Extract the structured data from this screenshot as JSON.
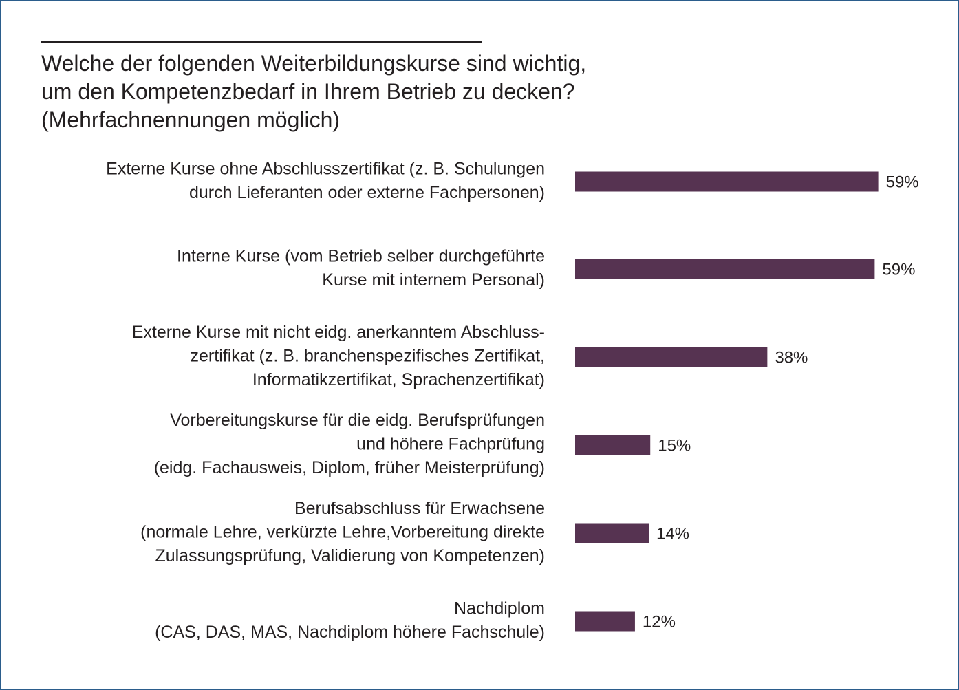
{
  "header": {
    "title_lines": [
      "Welche der folgenden Weiterbildungskurse sind wichtig,",
      "um den Kompetenzbedarf in Ihrem Betrieb zu decken?",
      "(Mehrfachnennungen möglich)"
    ]
  },
  "chart_data": {
    "type": "bar",
    "orientation": "horizontal",
    "title": "Welche der folgenden Weiterbildungskurse sind wichtig, um den Kompetenzbedarf in Ihrem Betrieb zu decken? (Mehrfachnennungen möglich)",
    "categories": [
      [
        "Externe Kurse ohne Abschlusszertifikat (z. B. Schulungen",
        "durch Lieferanten oder externe Fachpersonen)"
      ],
      [
        "Interne Kurse (vom Betrieb selber durchgeführte",
        "Kurse mit internem Personal)"
      ],
      [
        "Externe Kurse mit nicht eidg. anerkanntem Abschluss-",
        "zertifikat (z. B. branchenspezifisches Zertifikat,",
        "Informatikzertifikat, Sprachenzertifikat)"
      ],
      [
        "Vorbereitungskurse für die eidg. Berufsprüfungen",
        "und höhere Fachprüfung",
        "(eidg. Fachausweis, Diplom, früher Meisterprüfung)"
      ],
      [
        "Berufsabschluss für Erwachsene",
        "(normale Lehre, verkürzte Lehre,Vorbereitung direkte",
        "Zulassungsprüfung, Validierung von Kompetenzen)"
      ],
      [
        "Nachdiplom",
        "(CAS, DAS, MAS, Nachdiplom höhere Fachschule)"
      ]
    ],
    "values": [
      59.3,
      58.6,
      37.6,
      14.7,
      14.4,
      11.7
    ],
    "value_labels": [
      "59%",
      "59%",
      "38%",
      "15%",
      "14%",
      "12%"
    ],
    "xlim": [
      0,
      60
    ],
    "unit": "%",
    "bar_color": "#563351",
    "grid": false,
    "legend": "none",
    "xlabel": "",
    "ylabel": ""
  },
  "colors": {
    "frame": "#2b5d8c",
    "text": "#231f20",
    "bar": "#563351"
  }
}
